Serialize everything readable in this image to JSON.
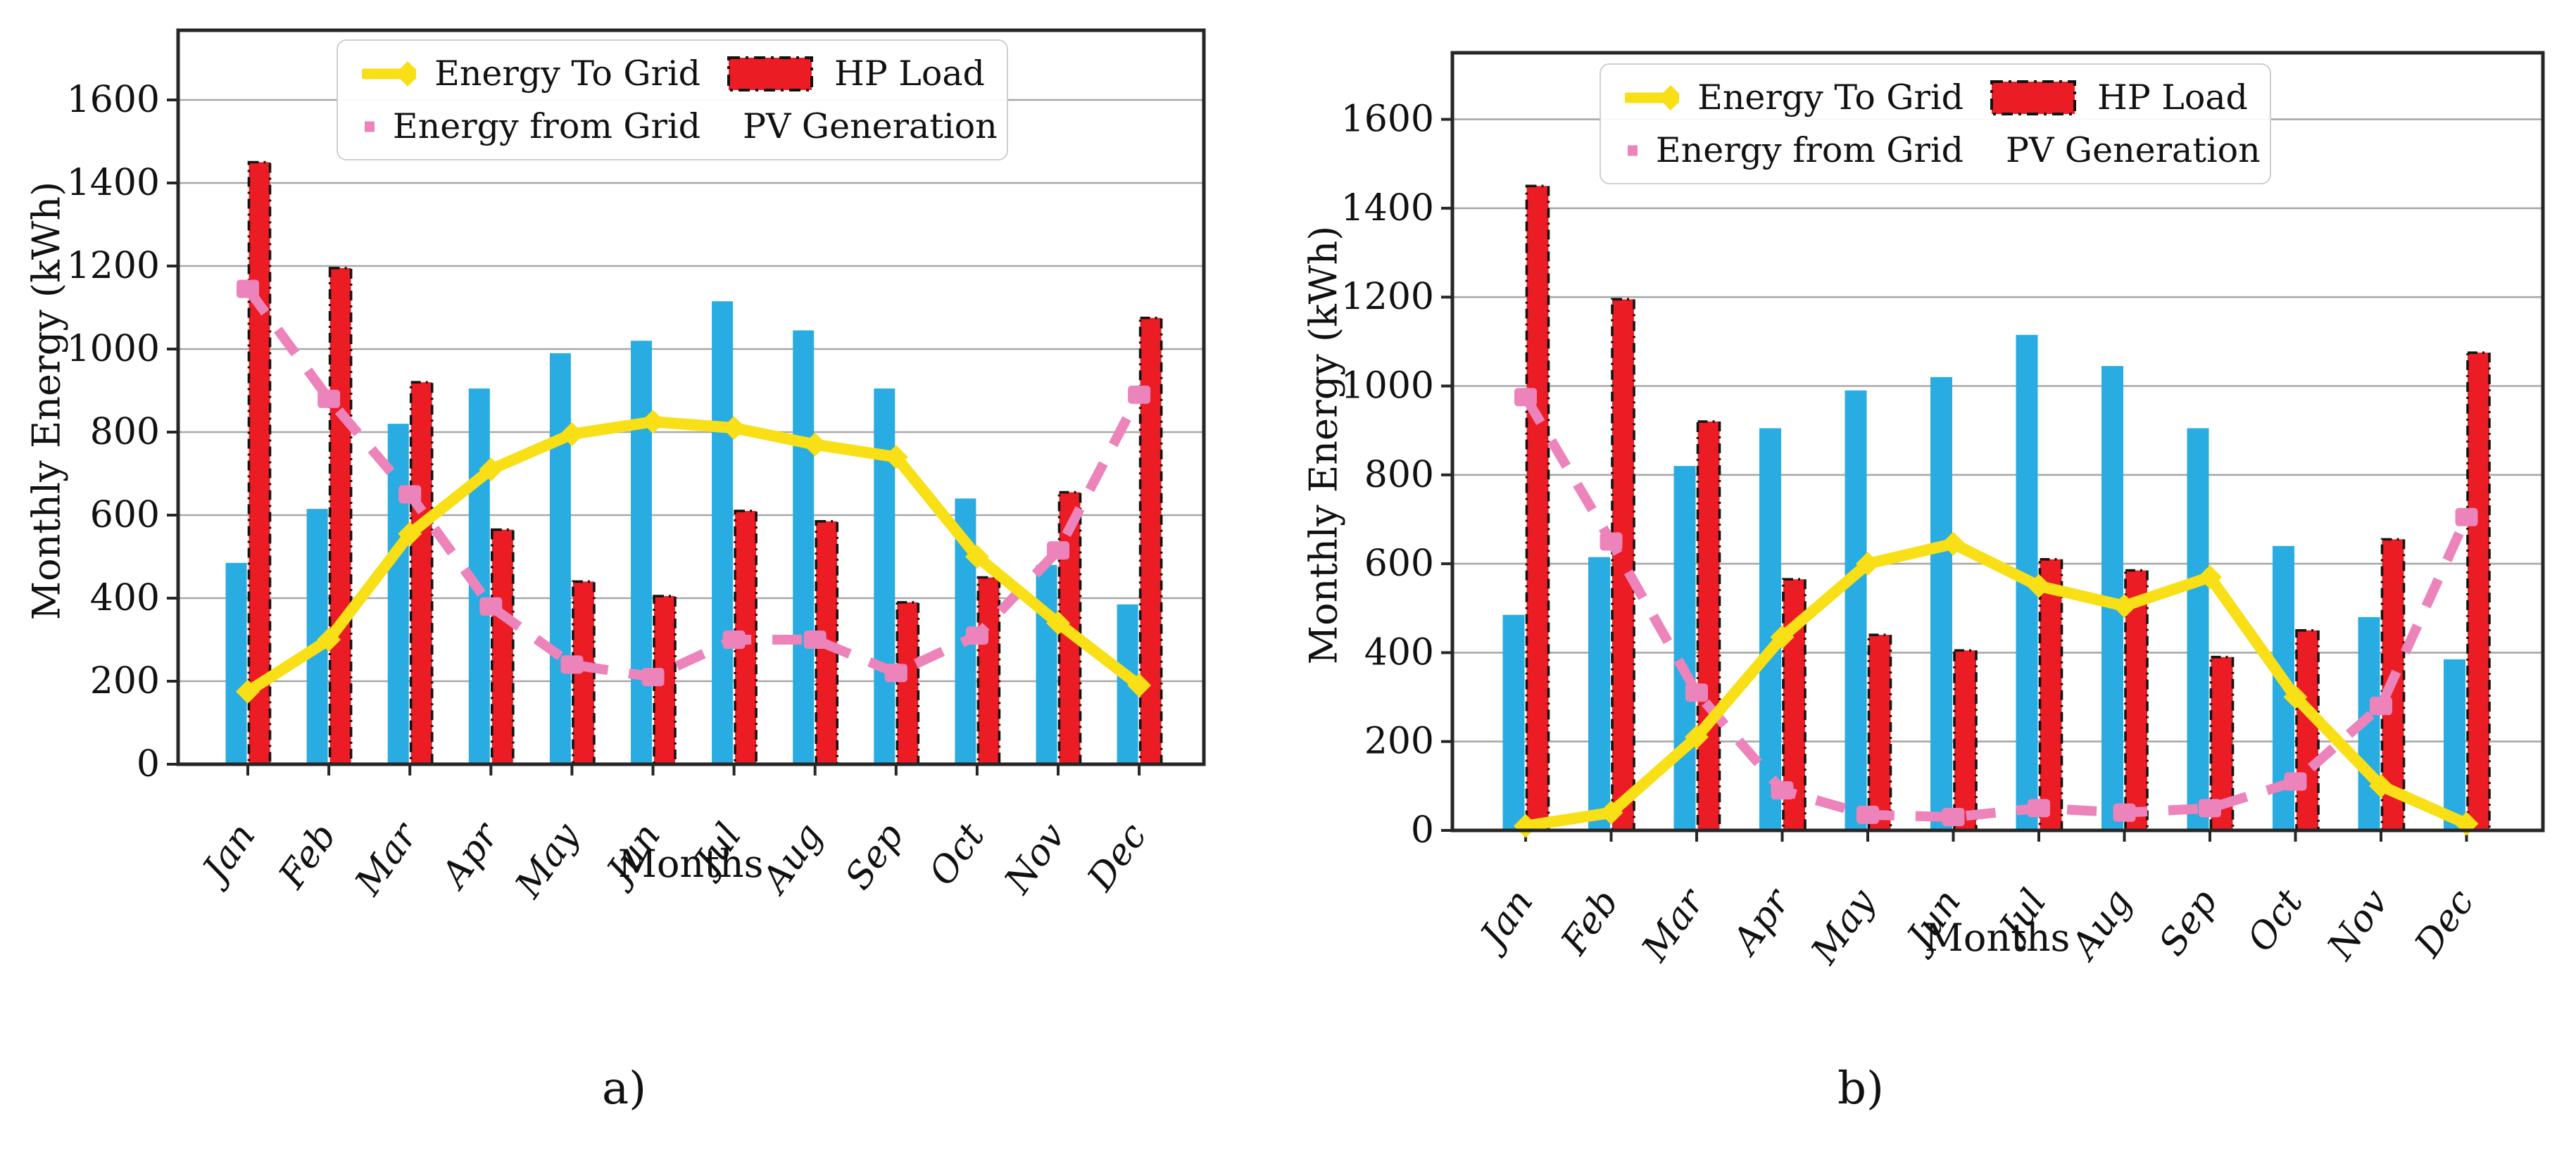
{
  "figure": {
    "background": "#ffffff",
    "panels": [
      "a)",
      "b)"
    ]
  },
  "colors": {
    "pv_generation": "#29ACE2",
    "hp_load": "#EC1C24",
    "energy_to_grid": "#F8DF16",
    "energy_from_grid": "#EC84BB",
    "gridline": "#A8A8A8",
    "axis": "#262626",
    "text": "#111111"
  },
  "chart_data": [
    {
      "type": "bar+line",
      "panel_label": "a)",
      "title": "",
      "xlabel": "Months",
      "ylabel": "Monthly Energy (kWh)",
      "categories": [
        "Jan",
        "Feb",
        "Mar",
        "Apr",
        "May",
        "Jun",
        "Jul",
        "Aug",
        "Sep",
        "Oct",
        "Nov",
        "Dec"
      ],
      "yticks": [
        0,
        200,
        400,
        600,
        800,
        1000,
        1200,
        1400,
        1600
      ],
      "ylim": [
        0,
        1770
      ],
      "grid": true,
      "legend_position": "upper center, 2 columns",
      "legend_order": [
        "Energy To Grid",
        "HP Load",
        "Energy from Grid",
        "PV Generation"
      ],
      "series": [
        {
          "name": "PV Generation",
          "type": "bar",
          "color": "#29ACE2",
          "values": [
            485,
            615,
            820,
            905,
            990,
            1020,
            1115,
            1045,
            905,
            640,
            480,
            385
          ]
        },
        {
          "name": "HP Load",
          "type": "bar",
          "color": "#EC1C24",
          "edge_style": "black dash-dot",
          "values": [
            1450,
            1195,
            920,
            565,
            440,
            405,
            610,
            585,
            390,
            450,
            655,
            1075
          ]
        },
        {
          "name": "Energy from Grid",
          "type": "line",
          "line_style": "dashed",
          "marker": "square",
          "color": "#EC84BB",
          "values": [
            1145,
            880,
            650,
            380,
            240,
            210,
            300,
            300,
            220,
            310,
            515,
            890
          ]
        },
        {
          "name": "Energy To Grid",
          "type": "line",
          "line_style": "solid",
          "marker": "diamond",
          "color": "#F8DF16",
          "values": [
            175,
            300,
            555,
            710,
            795,
            825,
            810,
            770,
            740,
            500,
            340,
            190
          ]
        }
      ]
    },
    {
      "type": "bar+line",
      "panel_label": "b)",
      "title": "",
      "xlabel": "Months",
      "ylabel": "Monthly Energy (kWh)",
      "categories": [
        "Jan",
        "Feb",
        "Mar",
        "Apr",
        "May",
        "Jun",
        "Jul",
        "Aug",
        "Sep",
        "Oct",
        "Nov",
        "Dec"
      ],
      "yticks": [
        0,
        200,
        400,
        600,
        800,
        1000,
        1200,
        1400,
        1600
      ],
      "ylim": [
        0,
        1750
      ],
      "grid": true,
      "legend_position": "upper center, 2 columns",
      "legend_order": [
        "Energy To Grid",
        "HP Load",
        "Energy from Grid",
        "PV Generation"
      ],
      "series": [
        {
          "name": "PV Generation",
          "type": "bar",
          "color": "#29ACE2",
          "values": [
            485,
            615,
            820,
            905,
            990,
            1020,
            1115,
            1045,
            905,
            640,
            480,
            385
          ]
        },
        {
          "name": "HP Load",
          "type": "bar",
          "color": "#EC1C24",
          "edge_style": "black dash-dot",
          "values": [
            1450,
            1195,
            920,
            565,
            440,
            405,
            610,
            585,
            390,
            450,
            655,
            1075
          ]
        },
        {
          "name": "Energy from Grid",
          "type": "line",
          "line_style": "dashed",
          "marker": "square",
          "color": "#EC84BB",
          "values": [
            975,
            650,
            310,
            90,
            35,
            30,
            50,
            40,
            50,
            110,
            280,
            705
          ]
        },
        {
          "name": "Energy To Grid",
          "type": "line",
          "line_style": "solid",
          "marker": "diamond",
          "color": "#F8DF16",
          "values": [
            10,
            40,
            210,
            435,
            600,
            645,
            550,
            505,
            570,
            300,
            100,
            15
          ]
        }
      ]
    }
  ]
}
